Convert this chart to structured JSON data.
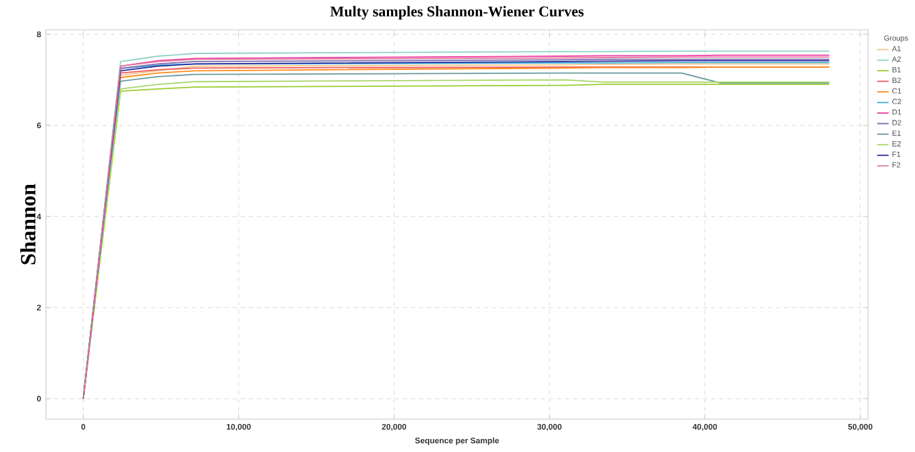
{
  "chart_data": {
    "type": "line",
    "title": "Multy samples Shannon-Wiener Curves",
    "xlabel": "Sequence per Sample",
    "ylabel": "Shannon",
    "legend_title": "Groups",
    "x": [
      0,
      2400,
      4800,
      7200,
      31000,
      33500,
      38500,
      41000,
      48000
    ],
    "series": [
      {
        "name": "A1",
        "color": "#f5c48a",
        "values": [
          0,
          7.1,
          7.2,
          7.3,
          7.33,
          7.34,
          7.35,
          7.35,
          7.35
        ]
      },
      {
        "name": "A2",
        "color": "#8fd3c8",
        "values": [
          0,
          7.4,
          7.52,
          7.58,
          7.62,
          7.62,
          7.63,
          7.63,
          7.63
        ]
      },
      {
        "name": "B1",
        "color": "#9acd32",
        "values": [
          0,
          6.75,
          6.8,
          6.84,
          6.88,
          6.9,
          6.9,
          6.9,
          6.9
        ]
      },
      {
        "name": "B2",
        "color": "#f05a5a",
        "values": [
          0,
          7.15,
          7.22,
          7.26,
          7.28,
          7.28,
          7.28,
          7.28,
          7.28
        ]
      },
      {
        "name": "C1",
        "color": "#ff8c1a",
        "values": [
          0,
          7.05,
          7.15,
          7.2,
          7.26,
          7.27,
          7.27,
          7.28,
          7.28
        ]
      },
      {
        "name": "C2",
        "color": "#3aaed8",
        "values": [
          0,
          7.25,
          7.32,
          7.35,
          7.37,
          7.37,
          7.38,
          7.38,
          7.38
        ]
      },
      {
        "name": "D1",
        "color": "#f03ca0",
        "values": [
          0,
          7.3,
          7.42,
          7.47,
          7.52,
          7.53,
          7.53,
          7.54,
          7.54
        ]
      },
      {
        "name": "D2",
        "color": "#7b68b0",
        "values": [
          0,
          7.25,
          7.35,
          7.4,
          7.44,
          7.45,
          7.45,
          7.45,
          7.45
        ]
      },
      {
        "name": "E1",
        "color": "#6a9aa0",
        "values": [
          0,
          6.97,
          7.07,
          7.12,
          7.15,
          7.15,
          7.15,
          6.93,
          6.93
        ]
      },
      {
        "name": "E2",
        "color": "#a8d66a",
        "values": [
          0,
          6.8,
          6.9,
          6.96,
          7.0,
          6.95,
          6.95,
          6.95,
          6.95
        ]
      },
      {
        "name": "F1",
        "color": "#2a2a9a",
        "values": [
          0,
          7.2,
          7.3,
          7.35,
          7.4,
          7.41,
          7.42,
          7.42,
          7.42
        ]
      },
      {
        "name": "F2",
        "color": "#e07aa0",
        "values": [
          0,
          7.3,
          7.4,
          7.45,
          7.48,
          7.49,
          7.5,
          7.5,
          7.5
        ]
      }
    ],
    "xlim": [
      -2400,
      50500
    ],
    "ylim": [
      -0.45,
      8.1
    ],
    "xticks": [
      0,
      {
        "value": 10000,
        "label": "10,000"
      },
      {
        "value": 20000,
        "label": "20,000"
      },
      {
        "value": 30000,
        "label": "30,000"
      },
      {
        "value": 40000,
        "label": "40,000"
      },
      {
        "value": 50000,
        "label": "50,000"
      }
    ],
    "yticks": [
      0,
      2,
      4,
      6,
      8
    ],
    "grid": true,
    "legend": "right",
    "marker": "none",
    "line_style": "solid"
  }
}
